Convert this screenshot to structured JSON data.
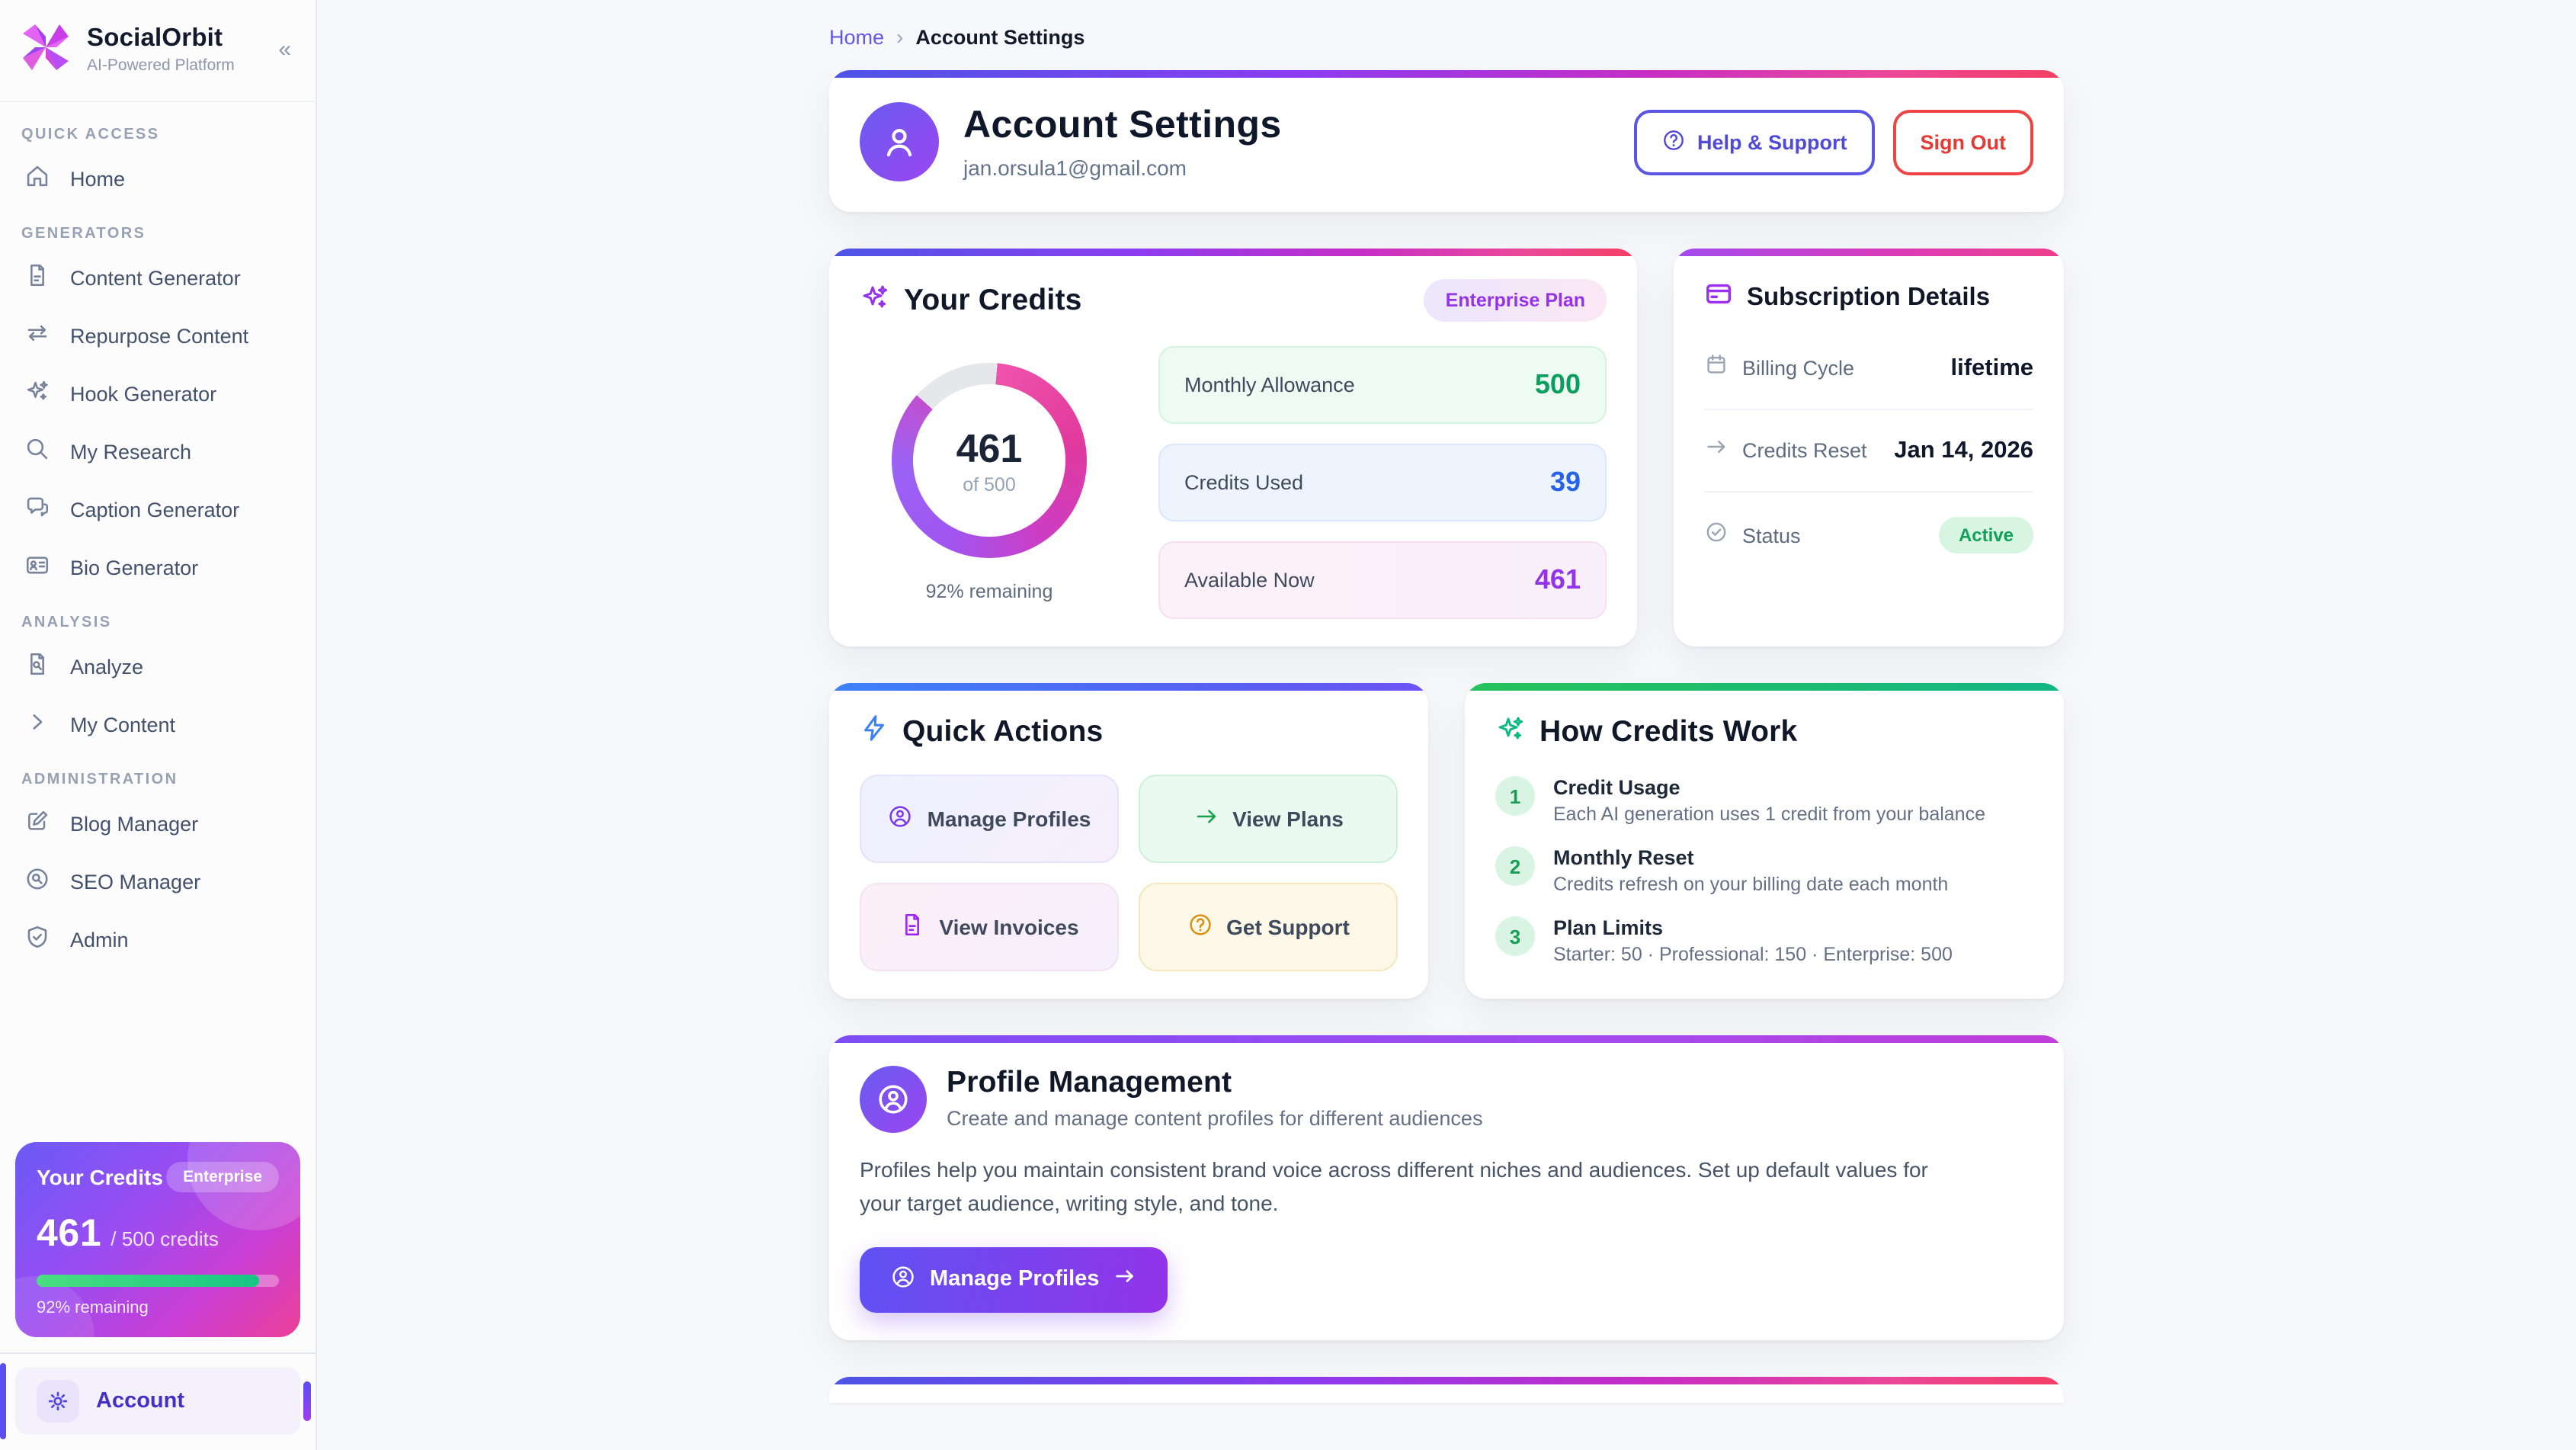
{
  "sidebar": {
    "brand": {
      "name": "SocialOrbit",
      "tagline": "AI-Powered Platform",
      "collapse_icon": "«"
    },
    "sections": [
      {
        "label": "QUICK ACCESS",
        "items": [
          {
            "label": "Home"
          }
        ]
      },
      {
        "label": "GENERATORS",
        "items": [
          {
            "label": "Content Generator"
          },
          {
            "label": "Repurpose Content"
          },
          {
            "label": "Hook Generator"
          },
          {
            "label": "My Research"
          },
          {
            "label": "Caption Generator"
          },
          {
            "label": "Bio Generator"
          }
        ]
      },
      {
        "label": "ANALYSIS",
        "items": [
          {
            "label": "Analyze"
          },
          {
            "label": "My Content"
          }
        ]
      },
      {
        "label": "ADMINISTRATION",
        "items": [
          {
            "label": "Blog Manager"
          },
          {
            "label": "SEO Manager"
          },
          {
            "label": "Admin"
          }
        ]
      }
    ],
    "credits_card": {
      "title": "Your Credits",
      "plan_badge": "Enterprise",
      "used_display": "461",
      "total_display": "/ 500 credits",
      "progress_percent": 92,
      "remaining_text": "92% remaining"
    },
    "account_item": {
      "label": "Account"
    }
  },
  "breadcrumb": {
    "home": "Home",
    "separator": "›",
    "current": "Account Settings"
  },
  "header": {
    "title": "Account Settings",
    "email": "jan.orsula1@gmail.com",
    "help_button": "Help & Support",
    "signout_button": "Sign Out"
  },
  "credits": {
    "title": "Your Credits",
    "plan_badge": "Enterprise Plan",
    "donut": {
      "value": "461",
      "of_label": "of 500",
      "percent_remaining": 92,
      "remaining_text": "92% remaining"
    },
    "stats": [
      {
        "label": "Monthly Allowance",
        "value": "500"
      },
      {
        "label": "Credits Used",
        "value": "39"
      },
      {
        "label": "Available Now",
        "value": "461"
      }
    ]
  },
  "subscription": {
    "title": "Subscription Details",
    "rows": [
      {
        "label": "Billing Cycle",
        "value": "lifetime"
      },
      {
        "label": "Credits Reset",
        "value": "Jan 14, 2026"
      },
      {
        "label": "Status",
        "value": "Active"
      }
    ]
  },
  "quick_actions": {
    "title": "Quick Actions",
    "buttons": [
      {
        "label": "Manage Profiles"
      },
      {
        "label": "View Plans"
      },
      {
        "label": "View Invoices"
      },
      {
        "label": "Get Support"
      }
    ]
  },
  "how_credits": {
    "title": "How Credits Work",
    "steps": [
      {
        "num": "1",
        "title": "Credit Usage",
        "desc": "Each AI generation uses 1 credit from your balance"
      },
      {
        "num": "2",
        "title": "Monthly Reset",
        "desc": "Credits refresh on your billing date each month"
      },
      {
        "num": "3",
        "title": "Plan Limits",
        "desc": "Starter: 50 · Professional: 150 · Enterprise: 500"
      }
    ]
  },
  "profile_mgmt": {
    "title": "Profile Management",
    "subtitle": "Create and manage content profiles for different audiences",
    "body": "Profiles help you maintain consistent brand voice across different niches and audiences. Set up default values for your target audience, writing style, and tone.",
    "button": "Manage Profiles"
  },
  "colors": {
    "accent_purple": "#9333ea",
    "accent_indigo": "#5b4ef0",
    "accent_pink": "#ec4899",
    "accent_green": "#10b981",
    "accent_blue": "#3b82f6",
    "danger_red": "#ef4444"
  }
}
